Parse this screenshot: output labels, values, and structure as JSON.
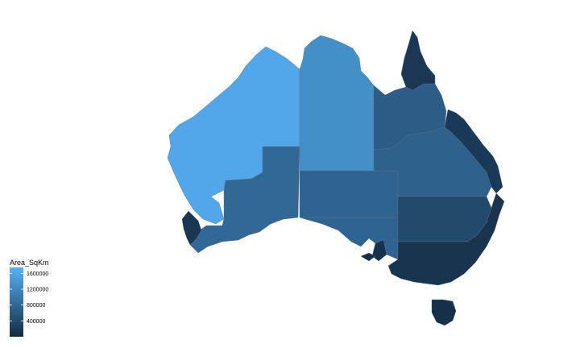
{
  "chart_data": {
    "type": "choropleth",
    "title": "",
    "legend": {
      "title": "Area_SqKm",
      "placement": "bottom-left",
      "breaks": [
        400000,
        800000,
        1200000,
        1600000
      ],
      "labels": [
        "400000",
        "800000",
        "1200000",
        "1600000"
      ],
      "range": [
        0,
        1750000
      ]
    },
    "color_scale": {
      "low": "#132b43",
      "high": "#56b1f7"
    },
    "regions": [
      {
        "name": "wa-north",
        "value": 1620000
      },
      {
        "name": "wa-south",
        "value": 800000
      },
      {
        "name": "wa-southwest",
        "value": 150000
      },
      {
        "name": "nt-north",
        "value": 1300000
      },
      {
        "name": "nt-south",
        "value": 750000
      },
      {
        "name": "sa",
        "value": 750000
      },
      {
        "name": "qld-north",
        "value": 650000
      },
      {
        "name": "qld-central",
        "value": 700000
      },
      {
        "name": "qld-east",
        "value": 180000
      },
      {
        "name": "cape-york",
        "value": 170000
      },
      {
        "name": "nsw-west",
        "value": 400000
      },
      {
        "name": "se-australia",
        "value": 120000
      },
      {
        "name": "sa-southeast",
        "value": 90000
      },
      {
        "name": "kangaroo-island",
        "value": 60000
      },
      {
        "name": "tasmania",
        "value": 68000
      }
    ]
  }
}
